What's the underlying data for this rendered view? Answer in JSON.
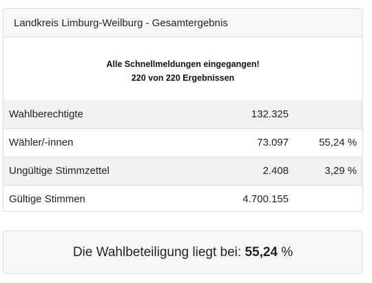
{
  "card": {
    "title": "Landkreis Limburg-Weilburg - Gesamtergebnis",
    "notice_line1": "Alle Schnellmeldungen eingegangen!",
    "notice_line2": "220 von 220 Ergebnissen"
  },
  "rows": [
    {
      "label": "Wahlberechtigte",
      "value": "132.325",
      "percent": ""
    },
    {
      "label": "Wähler/-innen",
      "value": "73.097",
      "percent": "55,24 %"
    },
    {
      "label": "Ungültige Stimmzettel",
      "value": "2.408",
      "percent": "3,29 %"
    },
    {
      "label": "Gültige Stimmen",
      "value": "4.700.155",
      "percent": ""
    }
  ],
  "turnout": {
    "text": "Die Wahlbeteiligung liegt bei:",
    "value": "55,24",
    "unit": "%"
  }
}
